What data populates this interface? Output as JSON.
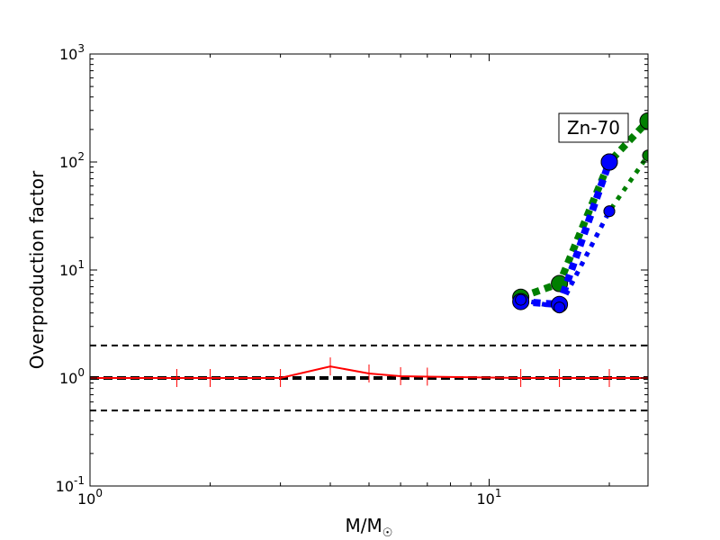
{
  "chart_data": {
    "type": "line",
    "title": "",
    "xlabel": "M/M",
    "xlabel_symbol": "☉",
    "ylabel": "Overproduction factor",
    "xscale": "log",
    "yscale": "log",
    "xlim": [
      1,
      25
    ],
    "ylim": [
      0.1,
      1000
    ],
    "x_ticks": [
      {
        "value": 1,
        "base": "10",
        "exp": "0"
      },
      {
        "value": 10,
        "base": "10",
        "exp": "1"
      }
    ],
    "y_ticks": [
      {
        "value": 0.1,
        "base": "10",
        "exp": "-1"
      },
      {
        "value": 1,
        "base": "10",
        "exp": "0"
      },
      {
        "value": 10,
        "base": "10",
        "exp": "1"
      },
      {
        "value": 100,
        "base": "10",
        "exp": "2"
      },
      {
        "value": 1000,
        "base": "10",
        "exp": "3"
      }
    ],
    "grid": false,
    "legend": "none",
    "annotation": "Zn-70",
    "reference_lines": [
      {
        "y": 2,
        "style": "dashed",
        "color": "#000000"
      },
      {
        "y": 1,
        "style": "dashed-thick",
        "color": "#000000"
      },
      {
        "y": 0.5,
        "style": "dashed",
        "color": "#000000"
      }
    ],
    "series": [
      {
        "color": "#ff0000",
        "style": "solid",
        "marker": "vline",
        "x": [
          1,
          1.65,
          2,
          3,
          4,
          5,
          6,
          7,
          12,
          15,
          20,
          25
        ],
        "y": [
          1,
          1,
          1,
          1,
          1.28,
          1.1,
          1.04,
          1.03,
          1.0,
          1.0,
          1.0,
          1.0
        ]
      },
      {
        "color": "#007f00",
        "style": "dotted",
        "marker": "circle-large",
        "x": [
          12,
          15,
          20,
          25
        ],
        "y": [
          5.6,
          7.5,
          100,
          240
        ]
      },
      {
        "color": "#007f00",
        "style": "dotted",
        "marker": "circle-small",
        "x": [
          12,
          15,
          20,
          25
        ],
        "y": [
          5.3,
          4.5,
          35,
          115
        ]
      },
      {
        "color": "#0000ff",
        "style": "dotted",
        "marker": "circle-large",
        "x": [
          12,
          15,
          20
        ],
        "y": [
          5.1,
          4.8,
          100
        ]
      },
      {
        "color": "#0000ff",
        "style": "dotted",
        "marker": "circle-small",
        "x": [
          12,
          15,
          20
        ],
        "y": [
          5.3,
          4.5,
          35
        ]
      }
    ]
  }
}
